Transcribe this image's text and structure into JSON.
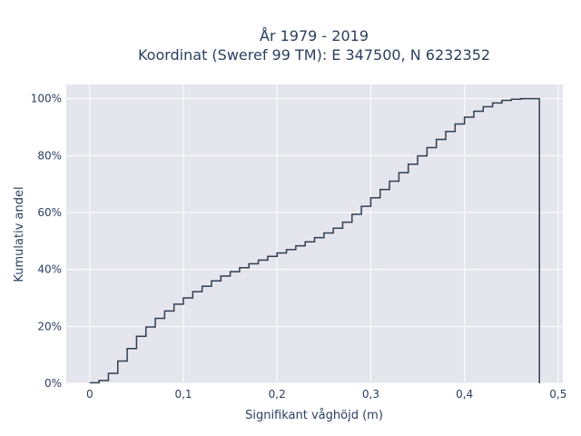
{
  "chart_data": {
    "type": "line",
    "line_shape": "step",
    "title_line1": "År 1979 - 2019",
    "title_line2": "Koordinat (Sweref 99 TM): E 347500, N 6232352",
    "xlabel": "Signifikant våghöjd (m)",
    "ylabel": "Kumulativ andel",
    "xlim": [
      -0.025,
      0.505
    ],
    "ylim": [
      0,
      1.05
    ],
    "grid": true,
    "colors": {
      "background": "#e5e5ee",
      "grid": "#ffffff",
      "line": "#2f3e50",
      "text": "#2a3f5f"
    },
    "x_ticks": [
      {
        "value": 0,
        "label": "0"
      },
      {
        "value": 0.1,
        "label": "0,1"
      },
      {
        "value": 0.2,
        "label": "0,2"
      },
      {
        "value": 0.3,
        "label": "0,3"
      },
      {
        "value": 0.4,
        "label": "0,4"
      },
      {
        "value": 0.5,
        "label": "0,5"
      }
    ],
    "y_ticks": [
      {
        "value": 0,
        "label": "0%"
      },
      {
        "value": 0.2,
        "label": "20%"
      },
      {
        "value": 0.4,
        "label": "40%"
      },
      {
        "value": 0.6,
        "label": "60%"
      },
      {
        "value": 0.8,
        "label": "80%"
      },
      {
        "value": 1.0,
        "label": "100%"
      }
    ],
    "x": [
      0,
      0.01,
      0.02,
      0.03,
      0.04,
      0.05,
      0.06,
      0.07,
      0.08,
      0.09,
      0.1,
      0.11,
      0.12,
      0.13,
      0.14,
      0.15,
      0.16,
      0.17,
      0.18,
      0.19,
      0.2,
      0.21,
      0.22,
      0.23,
      0.24,
      0.25,
      0.26,
      0.27,
      0.28,
      0.29,
      0.3,
      0.31,
      0.32,
      0.33,
      0.34,
      0.35,
      0.36,
      0.37,
      0.38,
      0.39,
      0.4,
      0.41,
      0.42,
      0.43,
      0.44,
      0.45,
      0.46,
      0.47,
      0.48
    ],
    "y": [
      0.002,
      0.01,
      0.035,
      0.078,
      0.122,
      0.165,
      0.198,
      0.228,
      0.254,
      0.278,
      0.3,
      0.322,
      0.341,
      0.36,
      0.377,
      0.392,
      0.406,
      0.42,
      0.433,
      0.446,
      0.458,
      0.47,
      0.483,
      0.497,
      0.512,
      0.528,
      0.545,
      0.566,
      0.594,
      0.622,
      0.652,
      0.681,
      0.71,
      0.74,
      0.77,
      0.799,
      0.828,
      0.857,
      0.885,
      0.911,
      0.935,
      0.956,
      0.972,
      0.985,
      0.994,
      0.998,
      1.0,
      1.0,
      0
    ]
  }
}
